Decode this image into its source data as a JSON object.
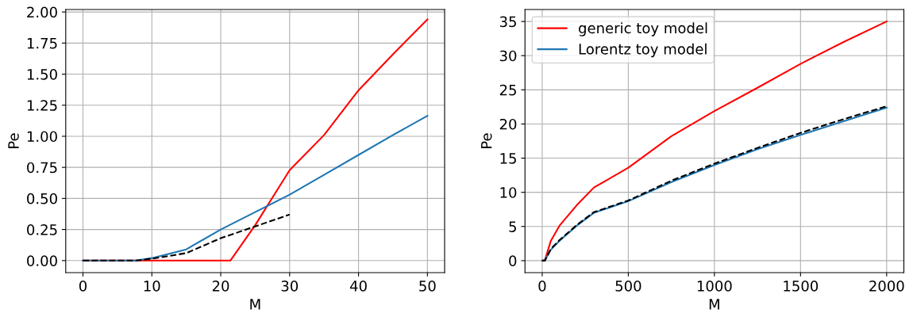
{
  "chart_data": [
    {
      "type": "line",
      "xlabel": "M",
      "ylabel": "Pe",
      "xlim": [
        -2.5,
        52.5
      ],
      "ylim": [
        -0.097,
        2.02
      ],
      "xticks": [
        0,
        10,
        20,
        30,
        40,
        50
      ],
      "yticks": [
        {
          "value": 0,
          "label": "0.00"
        },
        {
          "value": 0.25,
          "label": "0.25"
        },
        {
          "value": 0.5,
          "label": "0.50"
        },
        {
          "value": 0.75,
          "label": "0.75"
        },
        {
          "value": 1,
          "label": "1.00"
        },
        {
          "value": 1.25,
          "label": "1.25"
        },
        {
          "value": 1.5,
          "label": "1.50"
        },
        {
          "value": 1.75,
          "label": "1.75"
        },
        {
          "value": 2,
          "label": "2.00"
        }
      ],
      "grid": true,
      "legend": false,
      "series": [
        {
          "color": "#ff0000",
          "line_style": "solid",
          "x": [
            0,
            10,
            21.4,
            25,
            30,
            35,
            40,
            45,
            50
          ],
          "values": [
            0,
            0,
            0,
            0.285,
            0.727,
            1.01,
            1.37,
            1.66,
            1.94
          ]
        },
        {
          "color": "#1f77b4",
          "line_style": "solid",
          "x": [
            0,
            5,
            7.7,
            10,
            15,
            20,
            25,
            30,
            35,
            40,
            45,
            50
          ],
          "values": [
            0,
            0,
            0,
            0.02,
            0.09,
            0.25,
            0.39,
            0.53,
            0.69,
            0.85,
            1.01,
            1.165
          ]
        },
        {
          "color": "#000000",
          "line_style": "dashed",
          "x": [
            0,
            5,
            7.7,
            10,
            15,
            20,
            25,
            30
          ],
          "values": [
            0,
            0,
            0,
            0.015,
            0.06,
            0.18,
            0.275,
            0.37
          ]
        }
      ]
    },
    {
      "type": "line",
      "xlabel": "M",
      "ylabel": "Pe",
      "xlim": [
        -100,
        2100
      ],
      "ylim": [
        -1.75,
        36.75
      ],
      "xticks": [
        0,
        500,
        1000,
        1500,
        2000
      ],
      "yticks": [
        0,
        5,
        10,
        15,
        20,
        25,
        30,
        35
      ],
      "grid": true,
      "legend": "top left",
      "series": [
        {
          "name": "generic toy model",
          "color": "#ff0000",
          "line_style": "solid",
          "x": [
            0,
            15,
            50,
            100,
            200,
            300,
            500,
            750,
            1000,
            1250,
            1500,
            1750,
            2000
          ],
          "values": [
            0,
            0,
            2.9,
            5.1,
            8.1,
            10.7,
            13.6,
            18.2,
            21.9,
            25.3,
            28.8,
            32.0,
            35.0
          ]
        },
        {
          "name": "Lorentz toy model",
          "color": "#1f77b4",
          "line_style": "solid",
          "x": [
            0,
            15,
            50,
            100,
            200,
            300,
            500,
            750,
            1000,
            1250,
            1500,
            1750,
            2000
          ],
          "values": [
            0,
            0,
            1.6,
            2.9,
            5.1,
            7.0,
            8.7,
            11.5,
            14.0,
            16.3,
            18.4,
            20.4,
            22.4
          ]
        },
        {
          "color": "#000000",
          "line_style": "dashed",
          "x": [
            0,
            15,
            50,
            100,
            200,
            300,
            500,
            750,
            1000,
            1250,
            1500,
            1750,
            2000
          ],
          "values": [
            0,
            0,
            1.7,
            3.0,
            5.2,
            7.1,
            8.8,
            11.7,
            14.2,
            16.5,
            18.7,
            20.7,
            22.6
          ]
        }
      ]
    }
  ]
}
